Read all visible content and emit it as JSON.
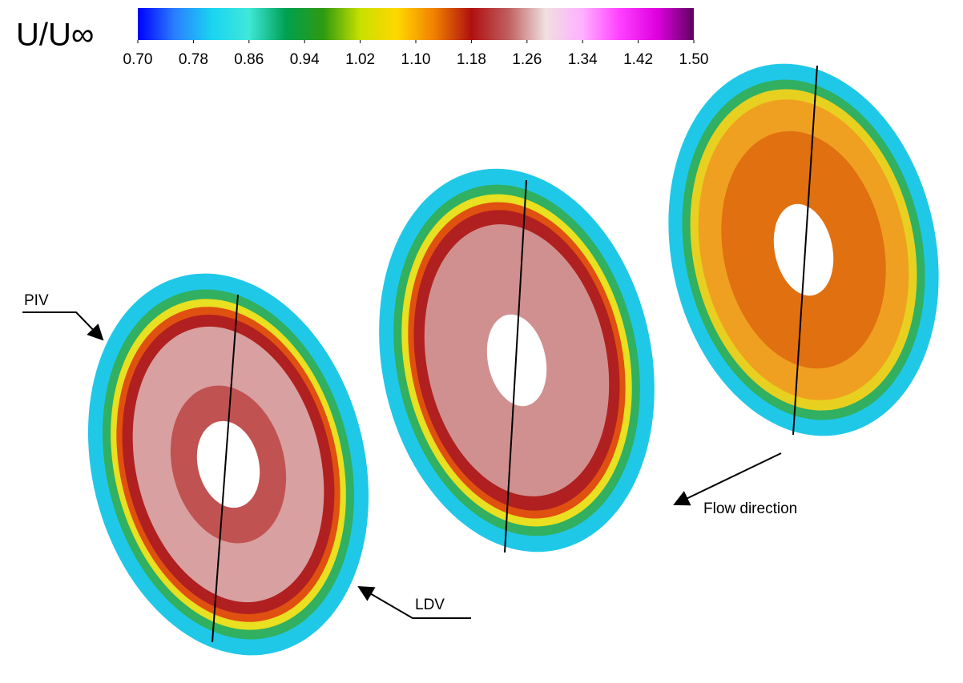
{
  "colorbar": {
    "label": "U/U∞",
    "lim": [
      0.7,
      1.5
    ],
    "ticks": [
      {
        "value": 0.7,
        "label": "0.70"
      },
      {
        "value": 0.78,
        "label": "0.78"
      },
      {
        "value": 0.86,
        "label": "0.86"
      },
      {
        "value": 0.94,
        "label": "0.94"
      },
      {
        "value": 1.02,
        "label": "1.02"
      },
      {
        "value": 1.1,
        "label": "1.10"
      },
      {
        "value": 1.18,
        "label": "1.18"
      },
      {
        "value": 1.26,
        "label": "1.26"
      },
      {
        "value": 1.34,
        "label": "1.34"
      },
      {
        "value": 1.42,
        "label": "1.42"
      },
      {
        "value": 1.5,
        "label": "1.50"
      }
    ],
    "colors": [
      "#0000ff",
      "#2a7fff",
      "#1ad4f0",
      "#3fe8d8",
      "#00a050",
      "#2e9a10",
      "#c8e000",
      "#ffd800",
      "#f08000",
      "#b01010",
      "#c06060",
      "#f0e0e0",
      "#ffb0ff",
      "#ff40ff",
      "#e000e0",
      "#600060"
    ]
  },
  "annotations": {
    "piv": "PIV",
    "ldv": "LDV",
    "flow": "Flow direction"
  }
}
